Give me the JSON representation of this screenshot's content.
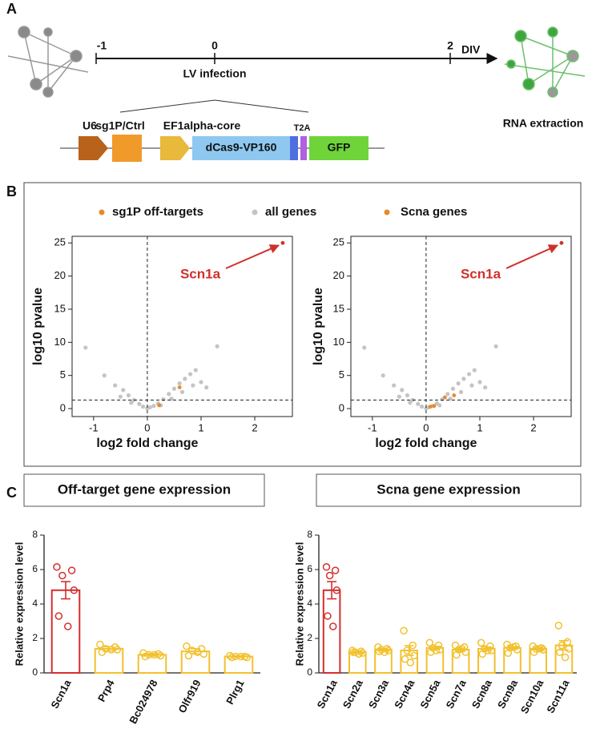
{
  "panel_labels": [
    "A",
    "B",
    "C"
  ],
  "diagram": {
    "timeline_ticks": [
      "-1",
      "0",
      "2"
    ],
    "timeline_unit": "DIV",
    "event": "LV infection",
    "end_event": "RNA extraction",
    "construct": [
      "U6",
      "sg1P/Ctrl",
      "EF1alpha-core",
      "dCas9-VP160",
      "T2A",
      "GFP"
    ]
  },
  "chart_data": [
    {
      "type": "scatter",
      "xlabel": "log2 fold change",
      "ylabel": "log10 pvalue",
      "xlim": [
        -1.4,
        2.7
      ],
      "ylim": [
        -1.2,
        26
      ],
      "xticks": [
        -1,
        0,
        1,
        2
      ],
      "yticks": [
        0,
        5,
        10,
        15,
        20,
        25
      ],
      "hline": 1.3,
      "vline": 0,
      "series": [
        {
          "name": "all genes",
          "color": "#c4c4c4",
          "x": [
            -1.15,
            -0.8,
            -0.6,
            -0.45,
            -0.35,
            -0.25,
            -0.15,
            -0.08,
            0.0,
            0.05,
            0.12,
            0.2,
            0.3,
            0.4,
            0.5,
            0.6,
            0.7,
            0.8,
            0.9,
            1.0,
            1.1,
            1.3,
            -0.5,
            -0.3,
            0.25,
            0.45,
            0.65,
            0.85
          ],
          "values": [
            9.2,
            5.0,
            3.5,
            2.8,
            2.0,
            1.3,
            0.7,
            0.3,
            0.05,
            0.2,
            0.4,
            0.8,
            1.4,
            2.2,
            3.0,
            3.8,
            4.5,
            5.2,
            5.8,
            4.0,
            3.2,
            9.4,
            1.8,
            0.9,
            0.5,
            1.5,
            2.5,
            3.5
          ]
        },
        {
          "name": "sg1P off-targets",
          "color": "#e8892b",
          "x": [
            0.6,
            0.22
          ],
          "values": [
            3.2,
            0.5
          ]
        },
        {
          "name": "Scn1a",
          "color": "#d0302a",
          "x": [
            2.52
          ],
          "values": [
            25
          ]
        }
      ]
    },
    {
      "type": "scatter",
      "xlabel": "log2 fold change",
      "ylabel": "log10 pvalue",
      "xlim": [
        -1.4,
        2.7
      ],
      "ylim": [
        -1.2,
        26
      ],
      "xticks": [
        -1,
        0,
        1,
        2
      ],
      "yticks": [
        0,
        5,
        10,
        15,
        20,
        25
      ],
      "hline": 1.3,
      "vline": 0,
      "series": [
        {
          "color": "#c4c4c4",
          "x": [
            -1.15,
            -0.8,
            -0.6,
            -0.45,
            -0.35,
            -0.25,
            -0.15,
            -0.08,
            0.0,
            0.05,
            0.12,
            0.2,
            0.3,
            0.4,
            0.5,
            0.6,
            0.7,
            0.8,
            0.9,
            1.0,
            1.1,
            1.3,
            -0.5,
            -0.3,
            0.25,
            0.45,
            0.65,
            0.85
          ],
          "values": [
            9.2,
            5.0,
            3.5,
            2.8,
            2.0,
            1.3,
            0.7,
            0.3,
            0.05,
            0.2,
            0.4,
            0.8,
            1.4,
            2.2,
            3.0,
            3.8,
            4.5,
            5.2,
            5.8,
            4.0,
            3.2,
            9.4,
            1.8,
            0.9,
            0.5,
            1.5,
            2.5,
            3.5
          ]
        },
        {
          "name": "Scna genes",
          "color": "#e8892b",
          "x": [
            0.35,
            0.52,
            0.08,
            0.15
          ],
          "values": [
            1.7,
            2.0,
            0.3,
            0.4
          ]
        },
        {
          "name": "Scn1a",
          "color": "#d0302a",
          "x": [
            2.52
          ],
          "values": [
            25
          ]
        }
      ]
    },
    {
      "type": "bar",
      "title": "Off-target gene expression",
      "ylabel": "Relative expression level",
      "ylim": [
        0,
        8
      ],
      "yticks": [
        0,
        2,
        4,
        6,
        8
      ],
      "categories": [
        "Scn1a",
        "Prp4",
        "Bc024978",
        "Olfr919",
        "Plrg1"
      ],
      "values": [
        4.8,
        1.4,
        1.05,
        1.25,
        0.95
      ],
      "errors": [
        0.5,
        0.12,
        0.07,
        0.15,
        0.05
      ],
      "colors": [
        "#d42e2e",
        "#f2c12e",
        "#f2c12e",
        "#f2c12e",
        "#f2c12e"
      ],
      "points": [
        [
          6.15,
          5.95,
          5.65,
          4.8,
          3.3,
          2.7
        ],
        [
          1.65,
          1.5,
          1.4,
          1.35,
          1.2,
          1.35
        ],
        [
          1.15,
          1.1,
          1.05,
          1.0,
          0.95,
          1.05
        ],
        [
          1.55,
          1.4,
          1.3,
          1.1,
          1.0,
          1.2
        ],
        [
          1.0,
          0.95,
          0.95,
          0.9,
          0.9,
          0.95
        ]
      ]
    },
    {
      "type": "bar",
      "title": "Scna gene expression",
      "ylabel": "Relative expression level",
      "ylim": [
        0,
        8
      ],
      "yticks": [
        0,
        2,
        4,
        6,
        8
      ],
      "categories": [
        "Scn1a",
        "Scn2a",
        "Scn3a",
        "Scn4a",
        "Scn5a",
        "Scn7a",
        "Scn8a",
        "Scn9a",
        "Scn10a",
        "Scn11a"
      ],
      "values": [
        4.8,
        1.2,
        1.35,
        1.3,
        1.45,
        1.35,
        1.4,
        1.45,
        1.4,
        1.6
      ],
      "errors": [
        0.5,
        0.05,
        0.06,
        0.28,
        0.09,
        0.09,
        0.1,
        0.08,
        0.06,
        0.27
      ],
      "colors": [
        "#d42e2e",
        "#f2c12e",
        "#f2c12e",
        "#f2c12e",
        "#f2c12e",
        "#f2c12e",
        "#f2c12e",
        "#f2c12e",
        "#f2c12e",
        "#f2c12e"
      ],
      "points": [
        [
          6.15,
          5.95,
          5.65,
          4.8,
          3.3,
          2.7
        ],
        [
          1.3,
          1.25,
          1.2,
          1.15,
          1.2,
          1.1
        ],
        [
          1.5,
          1.4,
          1.35,
          1.3,
          1.25,
          1.2
        ],
        [
          2.45,
          1.6,
          1.3,
          1.0,
          0.8,
          0.6
        ],
        [
          1.75,
          1.6,
          1.45,
          1.35,
          1.2,
          1.3
        ],
        [
          1.6,
          1.5,
          1.35,
          1.2,
          1.05,
          1.4
        ],
        [
          1.75,
          1.55,
          1.4,
          1.3,
          1.1,
          1.3
        ],
        [
          1.65,
          1.55,
          1.45,
          1.35,
          1.15,
          1.5
        ],
        [
          1.55,
          1.45,
          1.4,
          1.35,
          1.2,
          1.4
        ],
        [
          2.75,
          1.8,
          1.6,
          1.4,
          1.2,
          0.9
        ]
      ]
    }
  ]
}
